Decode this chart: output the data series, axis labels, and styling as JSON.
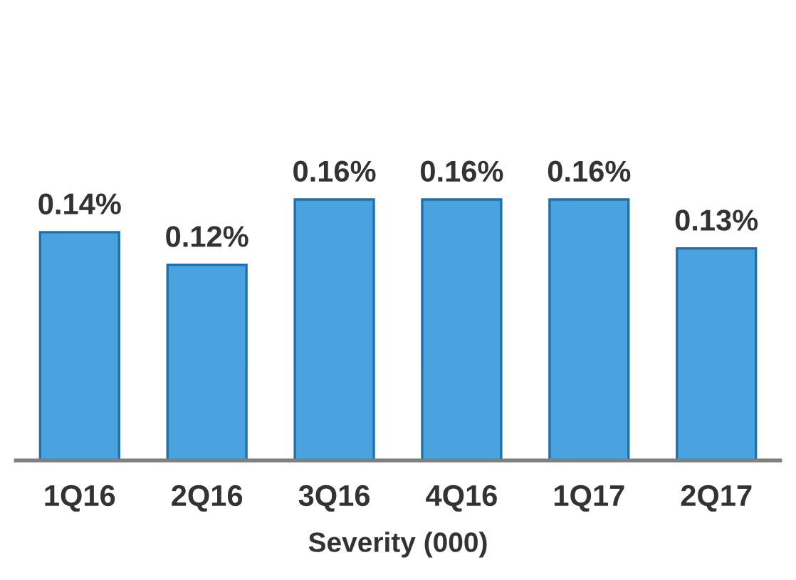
{
  "chart_data": {
    "type": "bar",
    "xlabel": "Severity (000)",
    "categories": [
      "1Q16",
      "2Q16",
      "3Q16",
      "4Q16",
      "1Q17",
      "2Q17"
    ],
    "values": [
      0.14,
      0.12,
      0.16,
      0.16,
      0.16,
      0.13
    ],
    "value_labels": [
      "0.14%",
      "0.12%",
      "0.16%",
      "0.16%",
      "0.16%",
      "0.13%"
    ],
    "color": "#4aa3df",
    "grid": false,
    "tick_labels": "x"
  }
}
